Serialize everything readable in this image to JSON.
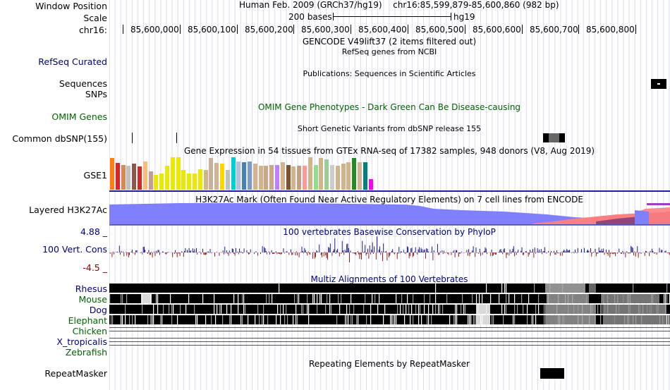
{
  "header": {
    "window_position_label": "Window Position",
    "scale_label": "Scale",
    "chrom_label": "chr16:",
    "assembly_text": "Human Feb. 2009 (GRCh37/hg19)",
    "position_text": "chr16:85,599,879-85,600,860 (982 bp)",
    "scale_text": "200 bases",
    "scale_db": "hg19",
    "ruler_ticks": [
      "85,600,000",
      "85,600,100",
      "85,600,200",
      "85,600,300",
      "85,600,400",
      "85,600,500",
      "85,600,600",
      "85,600,700",
      "85,600,800"
    ]
  },
  "tracks": {
    "gencode_title": "GENCODE V49lift37 (2 items filtered out)",
    "refseq_label": "RefSeq Curated",
    "refseq_title": "RefSeq genes from NCBI",
    "publications_title": "Publications: Sequences in Scientific Articles",
    "sequences_label": "Sequences",
    "snps_label": "SNPs",
    "omim_label": "OMIM Genes",
    "omim_title": "OMIM Gene Phenotypes - Dark Green Can Be Disease-causing",
    "dbsnp_title": "Short Genetic Variants from dbSNP release 155",
    "dbsnp_label": "Common dbSNP(155)",
    "gtex_title": "Gene Expression in 54 tissues from GTEx RNA-seq of 17382 samples, 948 donors (V8, Aug 2019)",
    "gse_label": "GSE1",
    "h3k27_label": "Layered H3K27Ac",
    "h3k27_title": "H3K27Ac Mark (Often Found Near Active Regulatory Elements) on 7 cell lines from ENCODE",
    "cons_title": "100 vertebrates Basewise Conservation by PhyloP",
    "cons_label": "100 Vert. Cons",
    "cons_max": "4.88 _",
    "cons_min": "-4.5 _",
    "multiz_title": "Multiz Alignments of 100 Vertebrates",
    "species": [
      "Rhesus",
      "Mouse",
      "Dog",
      "Elephant",
      "Chicken",
      "X_tropicalis",
      "Zebrafish"
    ],
    "repeat_title": "Repeating Elements by RepeatMasker",
    "repeat_label": "RepeatMasker"
  },
  "colors": {
    "blue_label": "#000080",
    "green_label": "#006400",
    "cons_max_color": "#000080",
    "cons_min_color": "#8b0000",
    "h3k27_blue": "#8080ff",
    "h3k27_red": "#ff8080",
    "h3k27_purple": "#804080",
    "track_divider": "#2020a0"
  },
  "gtex_bar_colors": [
    "#ff7f0e",
    "#d62728",
    "#d48a55",
    "#c0c0c0",
    "#8c564b",
    "#d62728",
    "#ffbb78",
    "#c49c94",
    "#e8e800",
    "#e8e800",
    "#e8e800",
    "#e8e800",
    "#e8e800",
    "#e8e800",
    "#e8e800",
    "#e8e800",
    "#e8e800",
    "#d2b48c",
    "#c8b09a",
    "#d0b49a",
    "#ffd700",
    "#c0c0c0",
    "#00ced1",
    "#b0c4de",
    "#4682b4",
    "#7b9cc8",
    "#d2b48c",
    "#d2b48c",
    "#c8a888",
    "#c8a888",
    "#bf80ff",
    "#d2b48c",
    "#7a5230",
    "#d2b48c",
    "#c0a080",
    "#ff9999",
    "#d2b48c",
    "#8ede8e",
    "#d2b48c",
    "#9bcd9b",
    "#ccc",
    "#d2b48c",
    "#d2b48c",
    "#d2b48c",
    "#228b22",
    "#d2b48c",
    "#008080",
    "#ff00ff"
  ],
  "gtex_levels": [
    0.95,
    0.8,
    0.75,
    0.72,
    0.78,
    0.7,
    0.85,
    0.55,
    0.45,
    0.5,
    0.72,
    0.98,
    0.98,
    0.6,
    0.5,
    0.5,
    0.62,
    0.6,
    0.95,
    0.8,
    0.78,
    0.6,
    0.98,
    0.85,
    0.82,
    0.85,
    0.78,
    0.72,
    0.72,
    0.75,
    0.75,
    0.82,
    0.75,
    0.7,
    0.72,
    0.72,
    0.98,
    0.75,
    0.95,
    0.92,
    0.75,
    0.72,
    0.78,
    0.82,
    0.95,
    0.82,
    0.82,
    0.32
  ]
}
